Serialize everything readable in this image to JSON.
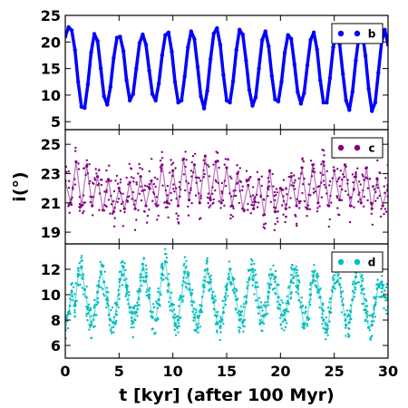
{
  "chart_data": {
    "type": "scatter",
    "xlabel": "t [kyr] (after 100 Myr)",
    "ylabel": "i(°)",
    "xlim": [
      0,
      30
    ],
    "xticks": [
      0,
      5,
      10,
      15,
      20,
      25,
      30
    ],
    "panels": [
      {
        "legend": "b",
        "color": "#0000ff",
        "legend_position": "top-right",
        "ylim": [
          3.5,
          25
        ],
        "yticks": [
          5,
          10,
          15,
          20,
          25
        ],
        "series": [
          {
            "name": "b",
            "x": [
              0.0,
              0.3,
              0.6,
              0.9,
              1.2,
              1.5,
              1.8,
              2.1,
              2.4,
              2.7,
              3.0,
              3.3,
              3.6,
              3.9,
              4.2,
              4.5,
              4.8,
              5.1,
              5.4,
              5.7,
              6.0,
              6.3,
              6.6,
              6.9,
              7.2,
              7.5,
              7.8,
              8.1,
              8.4,
              8.7,
              9.0,
              9.3,
              9.6,
              9.9,
              10.2,
              10.5,
              10.8,
              11.1,
              11.4,
              11.7,
              12.0,
              12.3,
              12.6,
              12.9,
              13.2,
              13.5,
              13.8,
              14.1,
              14.4,
              14.7,
              15.0,
              15.3,
              15.6,
              15.9,
              16.2,
              16.5,
              16.8,
              17.1,
              17.4,
              17.7,
              18.0,
              18.3,
              18.6,
              18.9,
              19.2,
              19.5,
              19.8,
              20.1,
              20.4,
              20.7,
              21.0,
              21.3,
              21.6,
              21.9,
              22.2,
              22.5,
              22.8,
              23.1,
              23.4,
              23.7,
              24.0,
              24.3,
              24.6,
              24.9,
              25.2,
              25.5,
              25.8,
              26.1,
              26.4,
              26.7,
              27.0,
              27.3,
              27.6,
              27.9,
              28.2,
              28.5,
              28.8,
              29.1,
              29.4,
              29.7,
              30.0
            ],
            "y": [
              21.0,
              22.8,
              22.2,
              18.5,
              12.5,
              7.8,
              7.6,
              12.0,
              18.0,
              21.5,
              20.2,
              15.0,
              9.8,
              8.2,
              11.5,
              17.0,
              20.8,
              21.0,
              18.3,
              12.8,
              9.0,
              10.2,
              15.0,
              19.8,
              21.4,
              19.5,
              14.6,
              10.2,
              9.0,
              12.2,
              17.5,
              21.3,
              21.8,
              18.2,
              12.5,
              8.6,
              9.0,
              13.5,
              19.0,
              22.0,
              20.6,
              15.3,
              9.8,
              7.5,
              10.8,
              16.8,
              21.6,
              22.6,
              19.5,
              13.8,
              9.0,
              8.6,
              12.6,
              18.5,
              22.3,
              21.4,
              16.5,
              11.0,
              8.0,
              9.6,
              15.0,
              20.4,
              22.0,
              19.2,
              13.6,
              9.2,
              8.8,
              12.5,
              18.0,
              21.3,
              20.6,
              15.8,
              10.6,
              8.4,
              10.4,
              15.6,
              20.4,
              21.8,
              18.6,
              12.8,
              8.6,
              8.6,
              13.2,
              19.0,
              21.8,
              19.6,
              14.0,
              9.0,
              7.2,
              10.6,
              16.5,
              21.3,
              21.8,
              17.4,
              11.2,
              7.0,
              8.6,
              14.2,
              20.0,
              22.3,
              19.5
            ]
          }
        ]
      },
      {
        "legend": "c",
        "color": "#800080",
        "legend_position": "top-right",
        "ylim": [
          18.2,
          26.0
        ],
        "yticks": [
          19,
          21,
          23,
          25
        ],
        "series": [
          {
            "name": "c",
            "x": [
              0.0,
              0.5,
              1.0,
              1.5,
              2.0,
              2.5,
              3.0,
              3.5,
              4.0,
              4.5,
              5.0,
              5.5,
              6.0,
              6.5,
              7.0,
              7.5,
              8.0,
              8.5,
              9.0,
              9.5,
              10.0,
              10.5,
              11.0,
              11.5,
              12.0,
              12.5,
              13.0,
              13.5,
              14.0,
              14.5,
              15.0,
              15.5,
              16.0,
              16.5,
              17.0,
              17.5,
              18.0,
              18.5,
              19.0,
              19.5,
              20.0,
              20.5,
              21.0,
              21.5,
              22.0,
              22.5,
              23.0,
              23.5,
              24.0,
              24.5,
              25.0,
              25.5,
              26.0,
              26.5,
              27.0,
              27.5,
              28.0,
              28.5,
              29.0,
              29.5,
              30.0
            ],
            "y": [
              22.5,
              21.0,
              23.8,
              20.8,
              23.5,
              20.8,
              22.8,
              20.5,
              22.6,
              20.4,
              22.0,
              20.6,
              22.4,
              20.6,
              22.8,
              20.8,
              22.5,
              20.8,
              23.6,
              21.0,
              23.2,
              20.8,
              24.0,
              21.2,
              23.6,
              21.0,
              24.2,
              21.2,
              23.8,
              21.0,
              23.4,
              20.8,
              23.0,
              20.6,
              22.2,
              20.6,
              22.6,
              20.2,
              23.2,
              20.4,
              22.0,
              20.6,
              22.8,
              20.8,
              23.4,
              20.6,
              23.6,
              21.0,
              23.8,
              20.8,
              23.2,
              21.2,
              23.6,
              20.8,
              22.8,
              21.0,
              23.4,
              20.6,
              22.6,
              20.8,
              22.2
            ]
          }
        ]
      },
      {
        "legend": "d",
        "color": "#00bfbf",
        "legend_position": "top-right",
        "ylim": [
          5.0,
          14.0
        ],
        "yticks": [
          6,
          8,
          10,
          12
        ],
        "series": [
          {
            "name": "d",
            "x": [
              0.0,
              0.3,
              0.6,
              0.9,
              1.2,
              1.5,
              1.8,
              2.1,
              2.4,
              2.7,
              3.0,
              3.3,
              3.6,
              3.9,
              4.2,
              4.5,
              4.8,
              5.1,
              5.4,
              5.7,
              6.0,
              6.3,
              6.6,
              6.9,
              7.2,
              7.5,
              7.8,
              8.1,
              8.4,
              8.7,
              9.0,
              9.3,
              9.6,
              9.9,
              10.2,
              10.5,
              10.8,
              11.1,
              11.4,
              11.7,
              12.0,
              12.3,
              12.6,
              12.9,
              13.2,
              13.5,
              13.8,
              14.1,
              14.4,
              14.7,
              15.0,
              15.3,
              15.6,
              15.9,
              16.2,
              16.5,
              16.8,
              17.1,
              17.4,
              17.7,
              18.0,
              18.3,
              18.6,
              18.9,
              19.2,
              19.5,
              19.8,
              20.1,
              20.4,
              20.7,
              21.0,
              21.3,
              21.6,
              21.9,
              22.2,
              22.5,
              22.8,
              23.1,
              23.4,
              23.7,
              24.0,
              24.3,
              24.6,
              24.9,
              25.2,
              25.5,
              25.8,
              26.1,
              26.4,
              26.7,
              27.0,
              27.3,
              27.6,
              27.9,
              28.2,
              28.5,
              28.8,
              29.1,
              29.4,
              29.7,
              30.0
            ],
            "y": [
              7.2,
              8.6,
              10.2,
              9.2,
              11.6,
              12.2,
              10.4,
              9.0,
              7.6,
              8.4,
              10.2,
              11.8,
              11.0,
              9.6,
              8.0,
              7.8,
              9.2,
              11.2,
              12.2,
              10.6,
              9.0,
              7.8,
              8.6,
              10.4,
              12.4,
              11.4,
              9.8,
              8.2,
              8.0,
              9.6,
              11.6,
              12.6,
              10.8,
              9.2,
              7.6,
              8.0,
              9.8,
              11.8,
              11.6,
              10.0,
              8.2,
              7.4,
              8.8,
              10.6,
              12.0,
              11.0,
              9.4,
              7.8,
              7.4,
              8.6,
              10.4,
              12.0,
              11.2,
              9.6,
              8.0,
              7.8,
              9.4,
              11.2,
              12.0,
              10.6,
              9.0,
              7.8,
              8.4,
              10.2,
              11.6,
              11.4,
              9.8,
              8.4,
              8.0,
              9.4,
              11.0,
              12.0,
              10.6,
              9.0,
              7.6,
              8.2,
              10.0,
              11.8,
              11.4,
              9.8,
              8.0,
              7.2,
              8.6,
              10.6,
              12.0,
              10.8,
              9.2,
              7.6,
              7.8,
              9.6,
              11.4,
              12.2,
              10.4,
              8.8,
              7.4,
              7.6,
              9.2,
              10.8,
              11.0,
              9.8,
              9.6
            ]
          }
        ]
      }
    ]
  }
}
